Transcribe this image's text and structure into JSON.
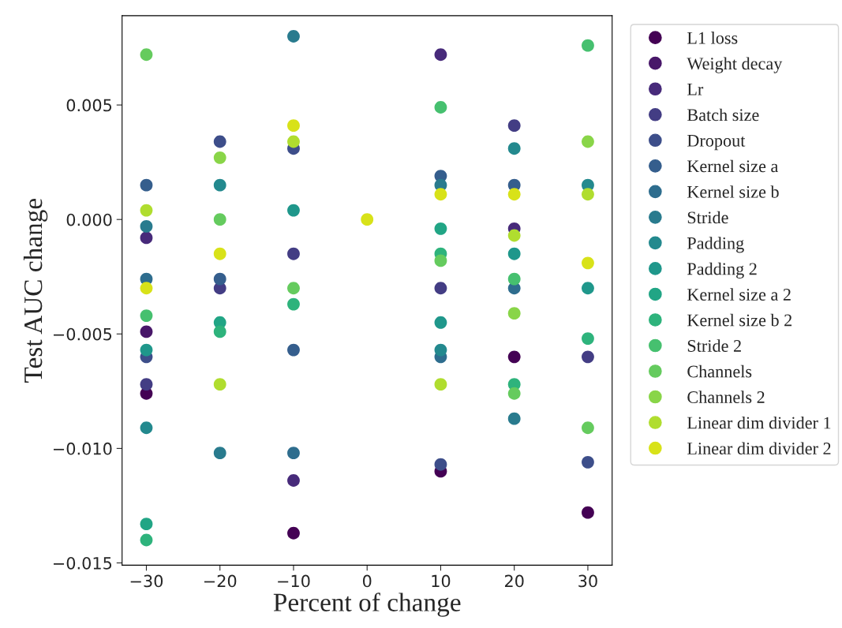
{
  "chart_data": {
    "type": "scatter",
    "xlabel": "Percent of change",
    "ylabel": "Test AUC change",
    "x": [
      -30,
      -20,
      -10,
      0,
      10,
      20,
      30
    ],
    "xlim": [
      -33.3,
      33.3
    ],
    "ylim": [
      -0.0151,
      0.0089
    ],
    "xticks": [
      {
        "value": -30,
        "label": "−30"
      },
      {
        "value": -20,
        "label": "−20"
      },
      {
        "value": -10,
        "label": "−10"
      },
      0,
      10,
      20,
      30
    ],
    "yticks": [
      {
        "value": -0.015,
        "label": "−0.015"
      },
      {
        "value": -0.01,
        "label": "−0.010"
      },
      {
        "value": -0.005,
        "label": "−0.005"
      },
      {
        "value": 0,
        "label": "0.000"
      },
      {
        "value": 0.005,
        "label": "0.005"
      }
    ],
    "grid": false,
    "legend": "right",
    "marker": "circle",
    "series": [
      {
        "name": "L1 loss",
        "color": "#440154",
        "values": [
          -0.0076,
          null,
          -0.0137,
          null,
          -0.011,
          -0.006,
          -0.0128
        ]
      },
      {
        "name": "Weight decay",
        "color": "#481769",
        "values": [
          -0.0049,
          null,
          null,
          null,
          null,
          null,
          null
        ]
      },
      {
        "name": "Lr",
        "color": "#472a7a",
        "values": [
          -0.0008,
          null,
          -0.0114,
          null,
          0.0072,
          -0.0004,
          null
        ]
      },
      {
        "name": "Batch size",
        "color": "#433d84",
        "values": [
          -0.0072,
          -0.003,
          -0.0015,
          null,
          -0.003,
          0.0041,
          -0.006
        ]
      },
      {
        "name": "Dropout",
        "color": "#3d4e8a",
        "values": [
          -0.006,
          0.0034,
          0.0031,
          null,
          -0.0107,
          null,
          -0.0106
        ]
      },
      {
        "name": "Kernel size a",
        "color": "#355e8d",
        "values": [
          0.0015,
          -0.0026,
          -0.0057,
          null,
          0.0019,
          0.0015,
          null
        ]
      },
      {
        "name": "Kernel size b",
        "color": "#2e6d8e",
        "values": [
          -0.0026,
          null,
          -0.0102,
          null,
          -0.006,
          -0.003,
          null
        ]
      },
      {
        "name": "Stride",
        "color": "#297b8e",
        "values": [
          -0.0003,
          -0.0102,
          0.008,
          null,
          0.0015,
          -0.0087,
          null
        ]
      },
      {
        "name": "Padding",
        "color": "#23898e",
        "values": [
          -0.0091,
          0.0015,
          null,
          null,
          -0.0057,
          0.0031,
          0.0015
        ]
      },
      {
        "name": "Padding 2",
        "color": "#1f978b",
        "values": [
          -0.0057,
          null,
          0.0004,
          null,
          -0.0045,
          -0.0015,
          -0.003
        ]
      },
      {
        "name": "Kernel size a 2",
        "color": "#21a585",
        "values": [
          -0.0133,
          -0.0045,
          null,
          null,
          -0.0004,
          null,
          null
        ]
      },
      {
        "name": "Kernel size b 2",
        "color": "#2eb37c",
        "values": [
          -0.014,
          -0.0049,
          -0.0037,
          null,
          -0.0015,
          -0.0072,
          -0.0052
        ]
      },
      {
        "name": "Stride 2",
        "color": "#46c06f",
        "values": [
          -0.0042,
          null,
          null,
          null,
          0.0049,
          -0.0026,
          0.0076
        ]
      },
      {
        "name": "Channels",
        "color": "#65cb5e",
        "values": [
          0.0072,
          0.0,
          -0.003,
          null,
          -0.0018,
          -0.0076,
          -0.0091
        ]
      },
      {
        "name": "Channels 2",
        "color": "#89d548",
        "values": [
          null,
          0.0027,
          null,
          null,
          null,
          -0.0041,
          0.0034
        ]
      },
      {
        "name": "Linear dim divider 1",
        "color": "#b0dd2f",
        "values": [
          0.0004,
          -0.0072,
          0.0034,
          null,
          -0.0072,
          -0.0007,
          0.0011
        ]
      },
      {
        "name": "Linear dim divider 2",
        "color": "#d8e219",
        "values": [
          -0.003,
          -0.0015,
          0.0041,
          0,
          0.0011,
          0.0011,
          -0.0019
        ]
      }
    ]
  }
}
